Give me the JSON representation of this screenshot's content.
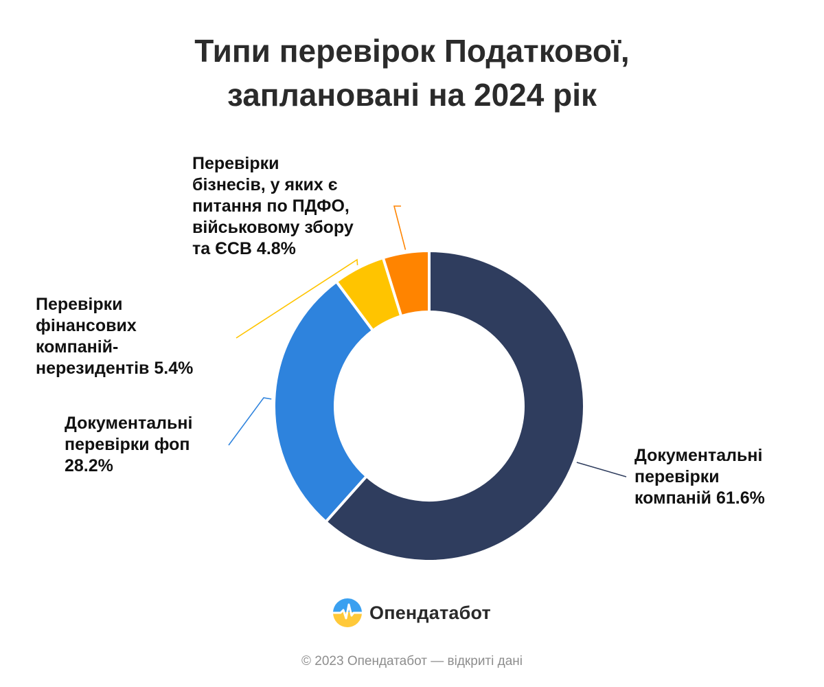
{
  "title_lines": [
    "Типи перевірок Податкової,",
    "заплановані на 2024 рік"
  ],
  "chart_data": {
    "type": "pie",
    "donut": true,
    "title": "Типи перевірок Податкової, заплановані на 2024 рік",
    "unit": "%",
    "slices": [
      {
        "label": "Документальні перевірки компаній",
        "value": 61.6,
        "color": "#2f3d5e",
        "label_lines": [
          "Документальні",
          "перевірки",
          "компаній 61.6%"
        ]
      },
      {
        "label": "Документальні перевірки фоп",
        "value": 28.2,
        "color": "#2e83dd",
        "label_lines": [
          "Документальні",
          "перевірки фоп",
          "28.2%"
        ]
      },
      {
        "label": "Перевірки фінансових компаній-нерезидентів",
        "value": 5.4,
        "color": "#ffc400",
        "label_lines": [
          "Перевірки",
          "фінансових",
          "компаній-",
          "нерезидентів 5.4%"
        ]
      },
      {
        "label": "Перевірки бізнесів, у яких є питання по ПДФО, військовому збору та ЄСВ",
        "value": 4.8,
        "color": "#ff8400",
        "label_lines": [
          "Перевірки",
          "бізнесів, у яких є",
          "питання по ПДФО,",
          "військовому збору",
          "та ЄСВ 4.8%"
        ]
      }
    ]
  },
  "logo": {
    "name": "Опендатабот",
    "icon": "opendatabot-logo-icon"
  },
  "footer": "© 2023 Опендатабот — відкриті дані"
}
